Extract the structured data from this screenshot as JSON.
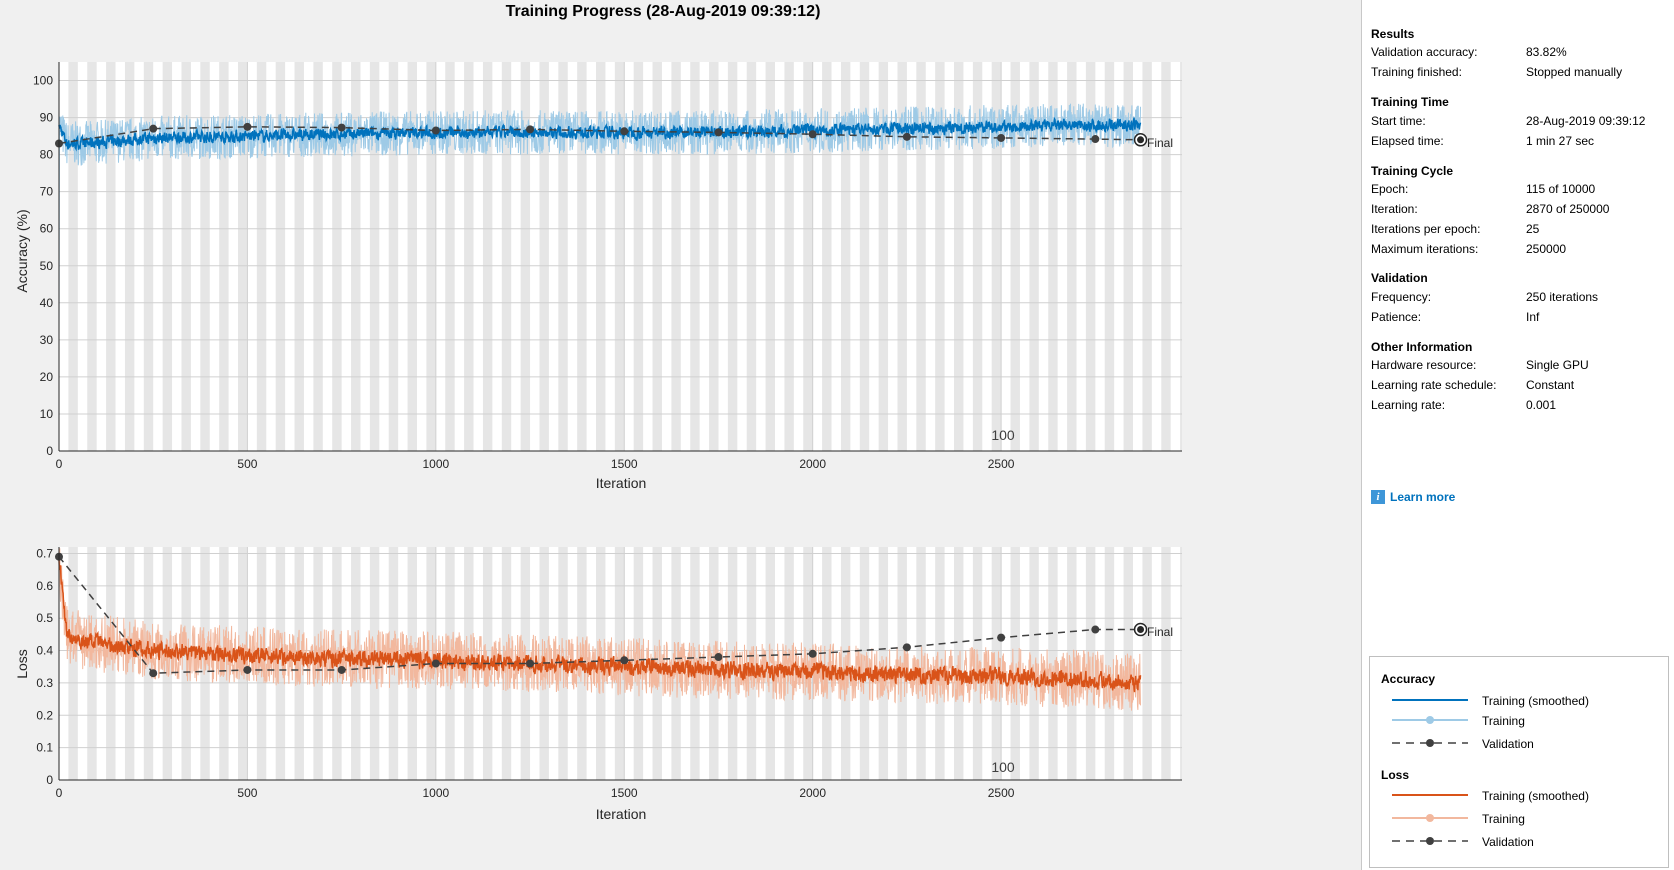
{
  "title": "Training Progress (28-Aug-2019 09:39:12)",
  "colors": {
    "accuracy_smoothed": "#0072bd",
    "accuracy_raw": "#9ecae6",
    "loss_smoothed": "#d95319",
    "loss_raw": "#f2b89e",
    "validation": "#404040",
    "epoch_band": "#e6e6e6"
  },
  "plots": {
    "accuracy": {
      "ylabel": "Accuracy (%)",
      "xlabel": "Iteration",
      "yticks": [
        "0",
        "10",
        "20",
        "30",
        "40",
        "50",
        "60",
        "70",
        "80",
        "90",
        "100"
      ],
      "xticks": [
        "0",
        "500",
        "1000",
        "1500",
        "2000",
        "2500"
      ],
      "epoch_label": "100",
      "final_label": "Final"
    },
    "loss": {
      "ylabel": "Loss",
      "xlabel": "Iteration",
      "yticks": [
        "0",
        "0.1",
        "0.2",
        "0.3",
        "0.4",
        "0.5",
        "0.6",
        "0.7"
      ],
      "xticks": [
        "0",
        "500",
        "1000",
        "1500",
        "2000",
        "2500"
      ],
      "epoch_label": "100",
      "final_label": "Final"
    }
  },
  "chart_data": [
    {
      "type": "line",
      "name": "accuracy",
      "xlim": [
        0,
        2980
      ],
      "ylim": [
        0,
        105
      ],
      "iterations_total": 2870,
      "iterations_per_epoch": 25,
      "series": [
        {
          "name": "Training (smoothed)",
          "x": [
            0,
            20,
            60,
            250,
            500,
            750,
            1000,
            1250,
            1500,
            1750,
            2000,
            2250,
            2500,
            2750,
            2870
          ],
          "y": [
            88,
            83,
            83,
            84.5,
            85,
            85.5,
            86,
            86,
            86,
            86,
            86.5,
            87,
            87.5,
            88,
            88
          ]
        },
        {
          "name": "Validation",
          "x": [
            0,
            250,
            500,
            750,
            1000,
            1250,
            1500,
            1750,
            2000,
            2250,
            2500,
            2750,
            2870
          ],
          "y": [
            83,
            87,
            87.5,
            87.3,
            86.5,
            86.8,
            86.3,
            86,
            85.5,
            84.8,
            84.5,
            84.2,
            84
          ]
        }
      ]
    },
    {
      "type": "line",
      "name": "loss",
      "xlim": [
        0,
        2980
      ],
      "ylim": [
        0,
        0.72
      ],
      "iterations_total": 2870,
      "iterations_per_epoch": 25,
      "series": [
        {
          "name": "Training (smoothed)",
          "x": [
            0,
            20,
            60,
            250,
            500,
            750,
            1000,
            1250,
            1500,
            1750,
            2000,
            2250,
            2500,
            2750,
            2870
          ],
          "y": [
            0.68,
            0.45,
            0.43,
            0.4,
            0.385,
            0.375,
            0.37,
            0.36,
            0.35,
            0.34,
            0.335,
            0.325,
            0.32,
            0.31,
            0.3
          ]
        },
        {
          "name": "Validation",
          "x": [
            0,
            250,
            500,
            750,
            1000,
            1250,
            1500,
            1750,
            2000,
            2250,
            2500,
            2750,
            2870
          ],
          "y": [
            0.69,
            0.33,
            0.34,
            0.34,
            0.36,
            0.36,
            0.37,
            0.38,
            0.39,
            0.41,
            0.44,
            0.465,
            0.465
          ]
        }
      ]
    }
  ],
  "panel": {
    "results": {
      "title": "Results",
      "rows": [
        {
          "label": "Validation accuracy:",
          "value": "83.82%"
        },
        {
          "label": "Training finished:",
          "value": "Stopped manually"
        }
      ]
    },
    "training_time": {
      "title": "Training Time",
      "rows": [
        {
          "label": "Start time:",
          "value": "28-Aug-2019 09:39:12"
        },
        {
          "label": "Elapsed time:",
          "value": "1 min 27 sec"
        }
      ]
    },
    "training_cycle": {
      "title": "Training Cycle",
      "rows": [
        {
          "label": "Epoch:",
          "value": "115 of 10000"
        },
        {
          "label": "Iteration:",
          "value": "2870 of 250000"
        },
        {
          "label": "Iterations per epoch:",
          "value": "25"
        },
        {
          "label": "Maximum iterations:",
          "value": "250000"
        }
      ]
    },
    "validation": {
      "title": "Validation",
      "rows": [
        {
          "label": "Frequency:",
          "value": "250 iterations"
        },
        {
          "label": "Patience:",
          "value": "Inf"
        }
      ]
    },
    "other": {
      "title": "Other Information",
      "rows": [
        {
          "label": "Hardware resource:",
          "value": "Single GPU"
        },
        {
          "label": "Learning rate schedule:",
          "value": "Constant"
        },
        {
          "label": "Learning rate:",
          "value": "0.001"
        }
      ]
    },
    "learn_more": "Learn more",
    "info_glyph": "i"
  },
  "legend": {
    "accuracy_title": "Accuracy",
    "loss_title": "Loss",
    "training_smoothed": "Training (smoothed)",
    "training": "Training",
    "validation": "Validation"
  }
}
